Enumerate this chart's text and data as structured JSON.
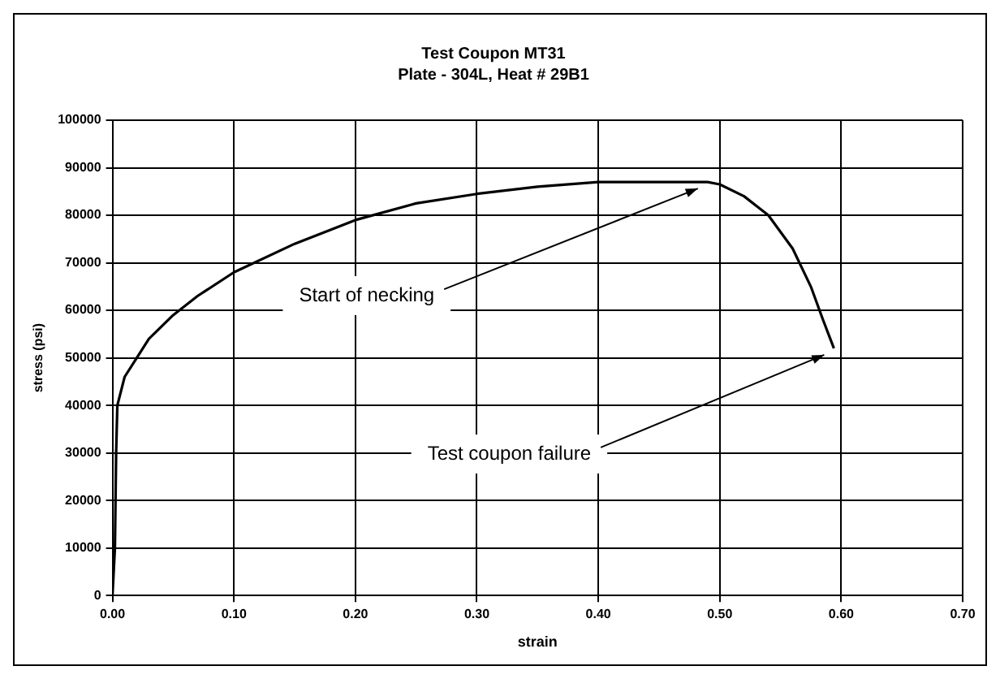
{
  "chart_data": {
    "type": "line",
    "title": "Test Coupon MT31",
    "subtitle": "Plate - 304L, Heat # 29B1",
    "xlabel": "strain",
    "ylabel": "stress (psi)",
    "x": [
      0,
      0.002,
      0.003,
      0.004,
      0.01,
      0.02,
      0.03,
      0.05,
      0.07,
      0.1,
      0.15,
      0.2,
      0.25,
      0.3,
      0.35,
      0.4,
      0.45,
      0.49,
      0.5,
      0.52,
      0.54,
      0.56,
      0.575,
      0.585,
      0.594
    ],
    "series": [
      {
        "color": "#000000",
        "values": [
          0,
          10000,
          30000,
          40000,
          46000,
          50000,
          54000,
          59000,
          63000,
          68000,
          74000,
          79000,
          82500,
          84500,
          86000,
          87000,
          87000,
          87000,
          86500,
          84000,
          80000,
          73000,
          65000,
          58000,
          52000
        ]
      }
    ],
    "xlim": [
      0,
      0.7
    ],
    "xticks": [
      {
        "value": 0,
        "label": "0.00"
      },
      {
        "value": 0.1,
        "label": "0.10"
      },
      {
        "value": 0.2,
        "label": "0.20"
      },
      {
        "value": 0.3,
        "label": "0.30"
      },
      {
        "value": 0.4,
        "label": "0.40"
      },
      {
        "value": 0.5,
        "label": "0.50"
      },
      {
        "value": 0.6,
        "label": "0.60"
      },
      {
        "value": 0.7,
        "label": "0.70"
      }
    ],
    "ylim": [
      0,
      100000
    ],
    "yticks": [
      0,
      10000,
      20000,
      30000,
      40000,
      50000,
      60000,
      70000,
      80000,
      90000,
      100000
    ],
    "grid": true,
    "legend": false,
    "marker": "none",
    "line_style": "solid",
    "annotations": [
      {
        "text": "Start of necking",
        "x": 0.49,
        "y": 87000
      },
      {
        "text": "Test coupon failure",
        "x": 0.594,
        "y": 52000
      }
    ]
  }
}
